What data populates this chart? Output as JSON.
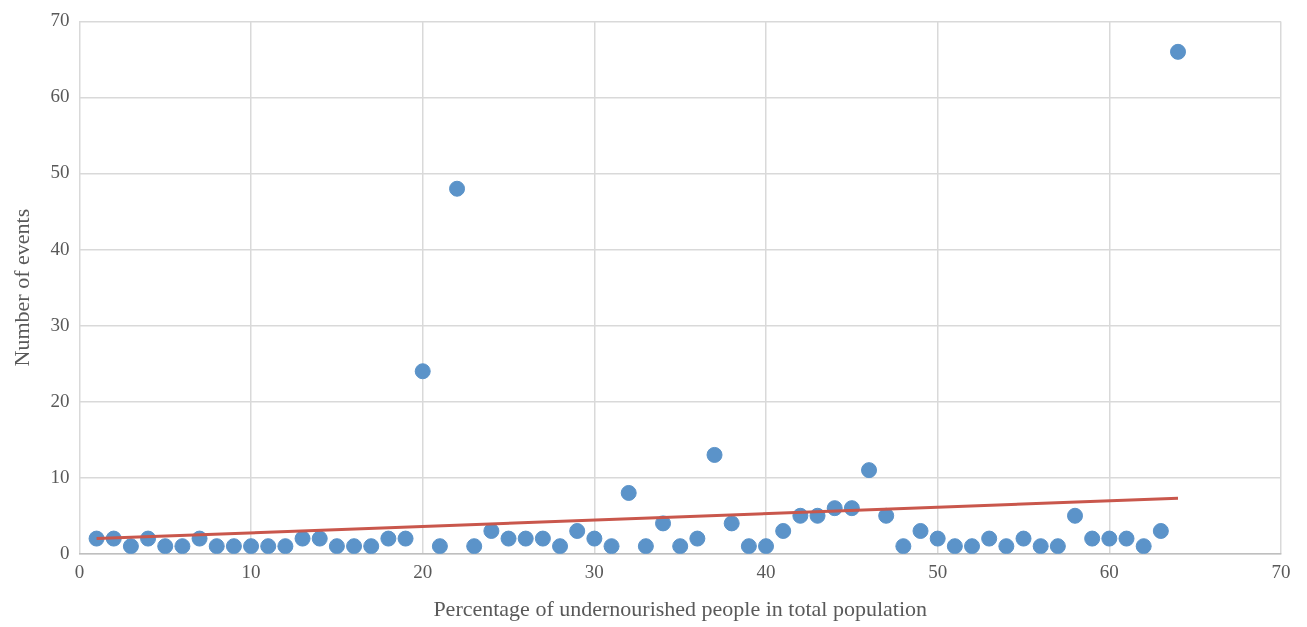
{
  "chart_data": {
    "type": "scatter",
    "xlabel": "Percentage of undernourished people in total population",
    "ylabel": "Number of events",
    "xlim": [
      0,
      70
    ],
    "xticks": [
      0,
      10,
      20,
      30,
      40,
      50,
      60,
      70
    ],
    "ylim": [
      0,
      70
    ],
    "yticks": [
      0,
      10,
      20,
      30,
      40,
      50,
      60,
      70
    ],
    "grid": true,
    "legend": false,
    "marker": "circle",
    "series": [
      {
        "type": "scatter",
        "color": "#5b93c9",
        "x": [
          1,
          2,
          3,
          4,
          5,
          6,
          7,
          8,
          9,
          10,
          11,
          12,
          13,
          14,
          15,
          16,
          17,
          18,
          19,
          20,
          21,
          22,
          23,
          24,
          25,
          26,
          27,
          28,
          29,
          30,
          31,
          32,
          33,
          34,
          35,
          36,
          37,
          38,
          39,
          40,
          41,
          42,
          43,
          44,
          45,
          46,
          47,
          48,
          49,
          50,
          51,
          52,
          53,
          54,
          55,
          56,
          57,
          58,
          59,
          60,
          61,
          62,
          63,
          64
        ],
        "values": [
          2,
          2,
          1,
          2,
          1,
          1,
          2,
          1,
          1,
          1,
          1,
          1,
          2,
          2,
          1,
          1,
          1,
          2,
          2,
          24,
          1,
          48,
          1,
          3,
          2,
          2,
          2,
          1,
          3,
          2,
          1,
          8,
          1,
          4,
          1,
          2,
          13,
          4,
          1,
          1,
          3,
          5,
          5,
          6,
          6,
          11,
          5,
          1,
          3,
          2,
          1,
          1,
          2,
          1,
          2,
          1,
          1,
          5,
          2,
          2,
          2,
          1,
          3,
          66
        ]
      },
      {
        "type": "line",
        "color": "#c9574c",
        "x": [
          1,
          64
        ],
        "values": [
          2.0,
          7.3
        ],
        "marker": "none",
        "line_style": "solid"
      }
    ]
  }
}
